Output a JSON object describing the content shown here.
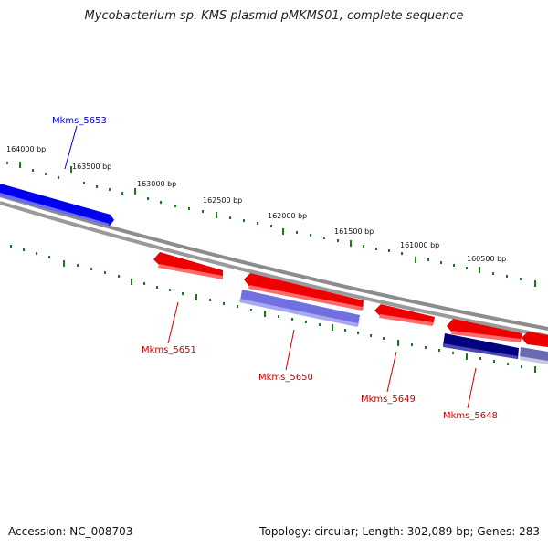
{
  "title": "Mycobacterium sp. KMS plasmid pMKMS01, complete sequence",
  "footer": {
    "accession": "Accession: NC_008703",
    "summary": "Topology: circular; Length: 302,089 bp; Genes: 283"
  },
  "ruler_labels": [
    "164000 bp",
    "163500 bp",
    "163000 bp",
    "162500 bp",
    "162000 bp",
    "161500 bp",
    "161000 bp",
    "160500 bp"
  ],
  "gene_labels": [
    "Mkms_5653",
    "Mkms_5651",
    "Mkms_5650",
    "Mkms_5649",
    "Mkms_5648"
  ],
  "colors": {
    "forward_gene": "#0000ee",
    "reverse_gene": "#ee0000",
    "reverse_cds": "#7070e0",
    "dark_cds": "#000080",
    "backbone": "#808080",
    "tick": "#1a7a1a"
  }
}
